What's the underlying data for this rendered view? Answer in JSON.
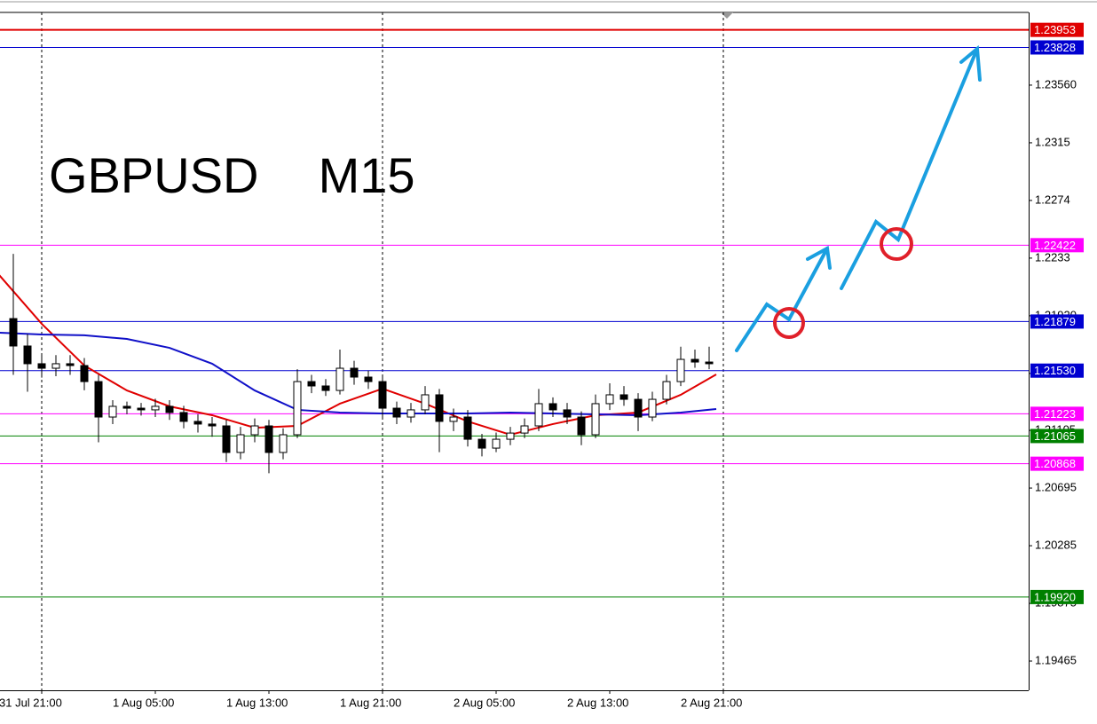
{
  "chart_data": {
    "type": "candlestick",
    "title": "GBPUSD  M15",
    "xlim": [
      -2.9375,
      69.5
    ],
    "xticks": [
      {
        "value": 0,
        "label": "31 Jul 21:00"
      },
      {
        "value": 8,
        "label": "1 Aug 05:00"
      },
      {
        "value": 16,
        "label": "1 Aug 13:00"
      },
      {
        "value": 24,
        "label": "1 Aug 21:00"
      },
      {
        "value": 32,
        "label": "2 Aug 05:00"
      },
      {
        "value": 40,
        "label": "2 Aug 13:00"
      },
      {
        "value": 48,
        "label": "2 Aug 21:00"
      }
    ],
    "xgrid": [
      0,
      24,
      48
    ],
    "ylim": [
      1.19257,
      1.24077
    ],
    "yticks": [
      {
        "value": 1.2356,
        "label": "1.23560"
      },
      1.2315,
      1.2274,
      1.2233,
      {
        "value": 1.2192,
        "label": "1.21920"
      },
      1.2151,
      1.21105,
      1.20695,
      1.20285,
      1.19875,
      1.19465
    ],
    "candles": {
      "x": [
        -2,
        -1,
        0,
        1,
        2,
        3,
        4,
        5,
        6,
        7,
        8,
        9,
        10,
        11,
        12,
        13,
        14,
        15,
        16,
        17,
        18,
        19,
        20,
        21,
        22,
        23,
        24,
        25,
        26,
        27,
        28,
        29,
        30,
        31,
        32,
        33,
        34,
        35,
        36,
        37,
        38,
        39,
        40,
        41,
        42,
        43,
        44,
        45,
        46,
        47
      ],
      "open": [
        1.219,
        1.21705,
        1.21579,
        1.21547,
        1.21579,
        1.21566,
        1.21452,
        1.212,
        1.21276,
        1.21263,
        1.21251,
        1.21276,
        1.21232,
        1.21169,
        1.2115,
        1.21137,
        1.20948,
        1.21074,
        1.21137,
        1.20948,
        1.21074,
        1.21452,
        1.21421,
        1.21389,
        1.21547,
        1.21484,
        1.21452,
        1.21263,
        1.212,
        1.21251,
        1.21358,
        1.21169,
        1.212,
        1.21042,
        1.20979,
        1.21042,
        1.21086,
        1.21137,
        1.21295,
        1.21251,
        1.212,
        1.21074,
        1.21295,
        1.21358,
        1.21326,
        1.212,
        1.21326,
        1.21452,
        1.2161,
        1.21591
      ],
      "high": [
        1.2236,
        1.2179,
        1.2165,
        1.2164,
        1.2164,
        1.2162,
        1.215,
        1.2132,
        1.2131,
        1.213,
        1.2133,
        1.2132,
        1.2128,
        1.2122,
        1.212,
        1.2118,
        1.2113,
        1.2119,
        1.2118,
        1.2112,
        1.2154,
        1.215,
        1.2147,
        1.2168,
        1.216,
        1.2153,
        1.2149,
        1.2131,
        1.213,
        1.2142,
        1.214,
        1.2126,
        1.2125,
        1.2108,
        1.2109,
        1.2113,
        1.2119,
        1.214,
        1.2134,
        1.213,
        1.2124,
        1.2136,
        1.2144,
        1.2142,
        1.2137,
        1.2138,
        1.215,
        1.217,
        1.2168,
        1.217
      ],
      "low": [
        1.215,
        1.2138,
        1.2148,
        1.2149,
        1.215,
        1.2139,
        1.2102,
        1.2115,
        1.2122,
        1.2121,
        1.212,
        1.2118,
        1.2112,
        1.2109,
        1.2106,
        1.2088,
        1.209,
        1.2102,
        1.208,
        1.209,
        1.2105,
        1.2137,
        1.2135,
        1.2136,
        1.2143,
        1.214,
        1.212,
        1.2115,
        1.2116,
        1.2122,
        1.2095,
        1.211,
        1.2099,
        1.2092,
        1.2095,
        1.21,
        1.2105,
        1.211,
        1.212,
        1.2115,
        1.21,
        1.2105,
        1.2125,
        1.2128,
        1.211,
        1.2117,
        1.2129,
        1.2142,
        1.2155,
        1.2154
      ],
      "close": [
        1.21705,
        1.21579,
        1.21547,
        1.21579,
        1.21566,
        1.21452,
        1.212,
        1.21276,
        1.21263,
        1.21251,
        1.21276,
        1.21232,
        1.21169,
        1.2115,
        1.21137,
        1.20948,
        1.21074,
        1.21137,
        1.20948,
        1.21074,
        1.21452,
        1.21421,
        1.21389,
        1.21547,
        1.21484,
        1.21452,
        1.21263,
        1.212,
        1.21251,
        1.21358,
        1.21169,
        1.212,
        1.21042,
        1.20979,
        1.21042,
        1.21086,
        1.21137,
        1.21295,
        1.21251,
        1.212,
        1.21074,
        1.21295,
        1.21358,
        1.21326,
        1.212,
        1.21326,
        1.21452,
        1.2161,
        1.21591,
        1.21579
      ]
    },
    "ma": [
      {
        "color": "#e00000",
        "x": [
          -3,
          0,
          3,
          6,
          9,
          12,
          15,
          18,
          21,
          24,
          27,
          30,
          33,
          36,
          39,
          42,
          45,
          47.5
        ],
        "values": [
          1.2221,
          1.21863,
          1.21566,
          1.21389,
          1.21276,
          1.21213,
          1.21124,
          1.21137,
          1.21295,
          1.21402,
          1.21295,
          1.21169,
          1.21074,
          1.2115,
          1.21213,
          1.21232,
          1.21358,
          1.21503
        ]
      },
      {
        "color": "#1010c8",
        "x": [
          -3,
          0,
          3,
          6,
          9,
          12,
          15,
          18,
          21,
          24,
          27,
          30,
          33,
          36,
          39,
          42,
          45,
          47.5
        ],
        "values": [
          1.218,
          1.21787,
          1.21781,
          1.21755,
          1.21692,
          1.21579,
          1.21389,
          1.21251,
          1.21232,
          1.21225,
          1.21225,
          1.21225,
          1.21232,
          1.21225,
          1.21219,
          1.21213,
          1.21232,
          1.21257
        ]
      }
    ],
    "levels": {
      "values": [
        1.23953,
        1.23828,
        1.22422,
        1.21879,
        1.2153,
        1.21223,
        1.21065,
        1.20868,
        1.1992
      ],
      "value_labels": [
        "1.23953",
        "1.23828",
        "1.22422",
        "1.21879",
        "1.21530",
        "1.21223",
        "1.21065",
        "1.20868",
        "1.19920"
      ],
      "colors": [
        "#e00000",
        "#0000d0",
        "#ff00ff",
        "#0000d0",
        "#0000d0",
        "#ff00ff",
        "#008000",
        "#ff00ff",
        "#008000"
      ]
    }
  }
}
